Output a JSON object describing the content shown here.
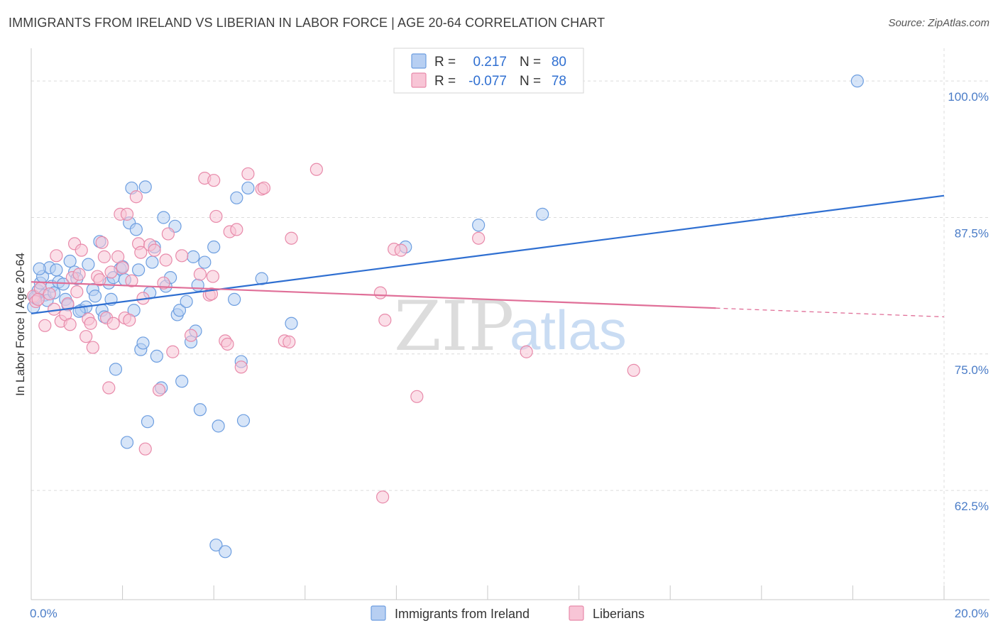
{
  "header": {
    "title": "IMMIGRANTS FROM IRELAND VS LIBERIAN IN LABOR FORCE | AGE 20-64 CORRELATION CHART",
    "source": "Source: ZipAtlas.com"
  },
  "colors": {
    "blue_fill": "#b7cff2",
    "blue_stroke": "#6d9ee0",
    "blue_line": "#2f6fd1",
    "pink_fill": "#f8c5d6",
    "pink_stroke": "#e88aaa",
    "pink_line": "#e06f98",
    "tick_text": "#4a7cc7",
    "grid": "#dcdcdc"
  },
  "legend_top": {
    "rows": [
      {
        "r_label": "R =",
        "r_value": "0.217",
        "n_label": "N =",
        "n_value": "80"
      },
      {
        "r_label": "R =",
        "r_value": "-0.077",
        "n_label": "N =",
        "n_value": "78"
      }
    ]
  },
  "watermark": {
    "zip": "ZIP",
    "atlas": "atlas"
  },
  "chart_data": {
    "type": "scatter",
    "title": "IMMIGRANTS FROM IRELAND VS LIBERIAN IN LABOR FORCE | AGE 20-64 CORRELATION CHART",
    "xlabel": "",
    "ylabel": "In Labor Force | Age 20-64",
    "xlim": [
      0,
      20
    ],
    "ylim": [
      52.5,
      103
    ],
    "x_tick_labels": [
      {
        "value": 0,
        "label": "0.0%"
      },
      {
        "value": 20,
        "label": "20.0%"
      }
    ],
    "y_tick_labels": [
      {
        "value": 100,
        "label": "100.0%"
      },
      {
        "value": 87.5,
        "label": "87.5%"
      },
      {
        "value": 75,
        "label": "75.0%"
      },
      {
        "value": 62.5,
        "label": "62.5%"
      }
    ],
    "grid": true,
    "legend_position": "bottom",
    "series": [
      {
        "name": "Immigrants from Ireland",
        "color": "#6d9ee0",
        "trend": {
          "x": [
            0,
            20
          ],
          "y": [
            78.7,
            89.5
          ],
          "dashed_from": null
        },
        "points": [
          [
            0.05,
            79.3
          ],
          [
            0.1,
            80.1
          ],
          [
            0.15,
            80.8
          ],
          [
            0.2,
            81.5
          ],
          [
            0.25,
            82.1
          ],
          [
            0.3,
            80.4
          ],
          [
            0.35,
            79.9
          ],
          [
            0.4,
            82.9
          ],
          [
            0.45,
            81.2
          ],
          [
            0.5,
            80.6
          ],
          [
            0.55,
            82.7
          ],
          [
            0.6,
            81.6
          ],
          [
            0.7,
            81.4
          ],
          [
            0.75,
            80.0
          ],
          [
            0.8,
            79.5
          ],
          [
            0.85,
            83.5
          ],
          [
            0.95,
            82.5
          ],
          [
            1.0,
            81.9
          ],
          [
            1.1,
            79.0
          ],
          [
            1.2,
            79.3
          ],
          [
            1.25,
            83.2
          ],
          [
            1.35,
            80.9
          ],
          [
            1.4,
            80.3
          ],
          [
            1.5,
            85.3
          ],
          [
            1.55,
            79.0
          ],
          [
            1.6,
            78.4
          ],
          [
            1.7,
            81.5
          ],
          [
            1.75,
            80.0
          ],
          [
            1.8,
            82.0
          ],
          [
            1.85,
            73.6
          ],
          [
            1.95,
            82.8
          ],
          [
            2.0,
            83.0
          ],
          [
            2.05,
            81.8
          ],
          [
            2.1,
            66.9
          ],
          [
            2.15,
            87.0
          ],
          [
            2.2,
            90.2
          ],
          [
            2.25,
            79.0
          ],
          [
            2.3,
            86.4
          ],
          [
            2.35,
            82.7
          ],
          [
            2.4,
            75.4
          ],
          [
            2.45,
            76.0
          ],
          [
            2.5,
            90.3
          ],
          [
            2.55,
            68.8
          ],
          [
            2.6,
            80.6
          ],
          [
            2.65,
            83.4
          ],
          [
            2.7,
            84.8
          ],
          [
            2.75,
            74.8
          ],
          [
            2.85,
            71.9
          ],
          [
            2.9,
            87.5
          ],
          [
            2.95,
            81.2
          ],
          [
            3.05,
            82.0
          ],
          [
            3.15,
            86.7
          ],
          [
            3.2,
            78.6
          ],
          [
            3.25,
            79.0
          ],
          [
            3.3,
            72.5
          ],
          [
            3.4,
            79.8
          ],
          [
            3.5,
            76.1
          ],
          [
            3.55,
            83.9
          ],
          [
            3.6,
            77.1
          ],
          [
            3.65,
            81.3
          ],
          [
            3.7,
            69.9
          ],
          [
            3.8,
            83.4
          ],
          [
            4.0,
            84.8
          ],
          [
            4.05,
            57.5
          ],
          [
            4.1,
            68.4
          ],
          [
            4.25,
            56.9
          ],
          [
            4.45,
            80.0
          ],
          [
            4.5,
            89.3
          ],
          [
            4.6,
            74.3
          ],
          [
            4.65,
            68.9
          ],
          [
            4.75,
            90.2
          ],
          [
            5.05,
            81.9
          ],
          [
            5.7,
            77.8
          ],
          [
            8.2,
            84.8
          ],
          [
            9.8,
            86.8
          ],
          [
            11.2,
            87.8
          ],
          [
            18.1,
            100.0
          ],
          [
            0.08,
            80.2
          ],
          [
            0.18,
            82.8
          ],
          [
            1.05,
            78.9
          ]
        ]
      },
      {
        "name": "Liberians",
        "color": "#e88aaa",
        "trend": {
          "x": [
            0,
            20
          ],
          "y": [
            81.6,
            78.4
          ],
          "dashed_from": 15.0
        },
        "points": [
          [
            0.05,
            80.3
          ],
          [
            0.1,
            79.8
          ],
          [
            0.2,
            81.0
          ],
          [
            0.3,
            77.6
          ],
          [
            0.4,
            80.5
          ],
          [
            0.5,
            79.1
          ],
          [
            0.55,
            84.0
          ],
          [
            0.65,
            78.0
          ],
          [
            0.75,
            78.6
          ],
          [
            0.8,
            79.6
          ],
          [
            0.85,
            77.7
          ],
          [
            0.9,
            82.0
          ],
          [
            0.95,
            85.1
          ],
          [
            1.0,
            80.7
          ],
          [
            1.05,
            82.3
          ],
          [
            1.1,
            84.5
          ],
          [
            1.2,
            76.6
          ],
          [
            1.25,
            78.2
          ],
          [
            1.3,
            77.8
          ],
          [
            1.35,
            75.6
          ],
          [
            1.45,
            82.1
          ],
          [
            1.5,
            81.8
          ],
          [
            1.55,
            85.2
          ],
          [
            1.6,
            83.9
          ],
          [
            1.65,
            78.3
          ],
          [
            1.7,
            71.9
          ],
          [
            1.75,
            82.5
          ],
          [
            1.8,
            77.8
          ],
          [
            1.9,
            83.9
          ],
          [
            1.95,
            87.8
          ],
          [
            2.0,
            82.9
          ],
          [
            2.05,
            78.3
          ],
          [
            2.1,
            87.8
          ],
          [
            2.15,
            78.1
          ],
          [
            2.2,
            81.7
          ],
          [
            2.3,
            89.4
          ],
          [
            2.35,
            85.1
          ],
          [
            2.4,
            84.3
          ],
          [
            2.45,
            80.1
          ],
          [
            2.5,
            66.3
          ],
          [
            2.6,
            85.0
          ],
          [
            2.7,
            84.5
          ],
          [
            2.8,
            71.7
          ],
          [
            2.9,
            81.5
          ],
          [
            2.95,
            83.6
          ],
          [
            3.0,
            86.0
          ],
          [
            3.1,
            75.2
          ],
          [
            3.3,
            84.0
          ],
          [
            3.5,
            76.7
          ],
          [
            3.7,
            82.3
          ],
          [
            3.8,
            91.1
          ],
          [
            3.9,
            80.4
          ],
          [
            3.95,
            80.5
          ],
          [
            3.98,
            82.1
          ],
          [
            4.0,
            90.9
          ],
          [
            4.05,
            87.6
          ],
          [
            4.25,
            76.2
          ],
          [
            4.3,
            75.9
          ],
          [
            4.35,
            86.2
          ],
          [
            4.5,
            86.4
          ],
          [
            4.6,
            73.8
          ],
          [
            4.75,
            91.5
          ],
          [
            5.05,
            90.1
          ],
          [
            5.1,
            90.2
          ],
          [
            5.55,
            76.2
          ],
          [
            5.65,
            76.1
          ],
          [
            5.7,
            85.6
          ],
          [
            6.25,
            91.9
          ],
          [
            7.65,
            80.6
          ],
          [
            7.7,
            61.9
          ],
          [
            7.75,
            78.1
          ],
          [
            7.95,
            84.6
          ],
          [
            8.1,
            84.5
          ],
          [
            8.45,
            71.1
          ],
          [
            9.8,
            85.6
          ],
          [
            10.85,
            75.2
          ],
          [
            13.2,
            73.5
          ],
          [
            0.15,
            80.0
          ]
        ]
      }
    ]
  },
  "legend_bottom": {
    "items": [
      {
        "label": "Immigrants from Ireland"
      },
      {
        "label": "Liberians"
      }
    ]
  }
}
